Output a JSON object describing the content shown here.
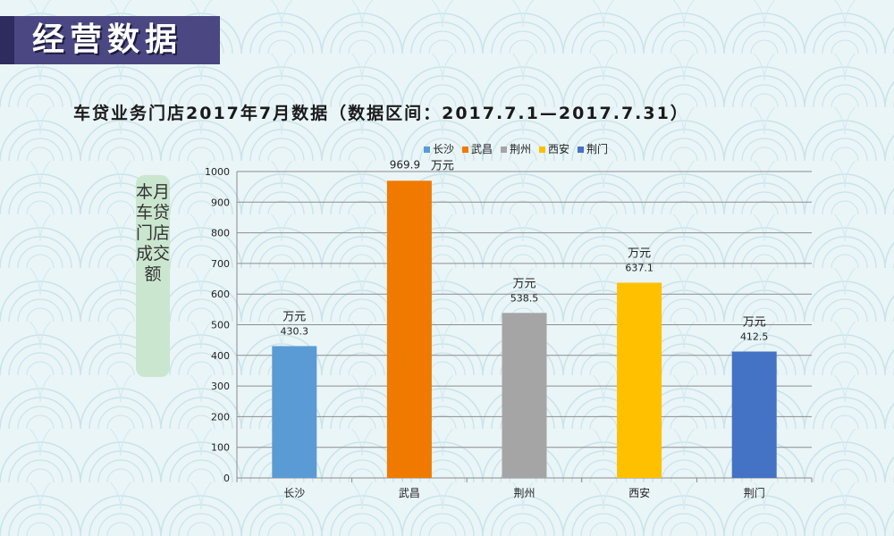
{
  "header": {
    "banner_title": "经营数据",
    "subtitle": "车贷业务门店2017年7月数据（数据区间：2017.7.1—2017.7.31）"
  },
  "chart_data": {
    "type": "bar",
    "categories": [
      "长沙",
      "武昌",
      "荆州",
      "西安",
      "荆门"
    ],
    "values": [
      430.3,
      969.9,
      538.5,
      637.1,
      412.5
    ],
    "colors": [
      "#5b9bd5",
      "#f07a00",
      "#a5a5a5",
      "#ffc000",
      "#4472c4"
    ],
    "value_unit": "万元",
    "ylabel": "本月车贷门店成交额",
    "xlabel": "",
    "ylim": [
      0,
      1000
    ],
    "yticks": [
      0,
      100,
      200,
      300,
      400,
      500,
      600,
      700,
      800,
      900,
      1000
    ],
    "legend": {
      "placement": "top-center",
      "entries": [
        "长沙",
        "武昌",
        "荆州",
        "西安",
        "荆门"
      ]
    },
    "grid": true
  }
}
